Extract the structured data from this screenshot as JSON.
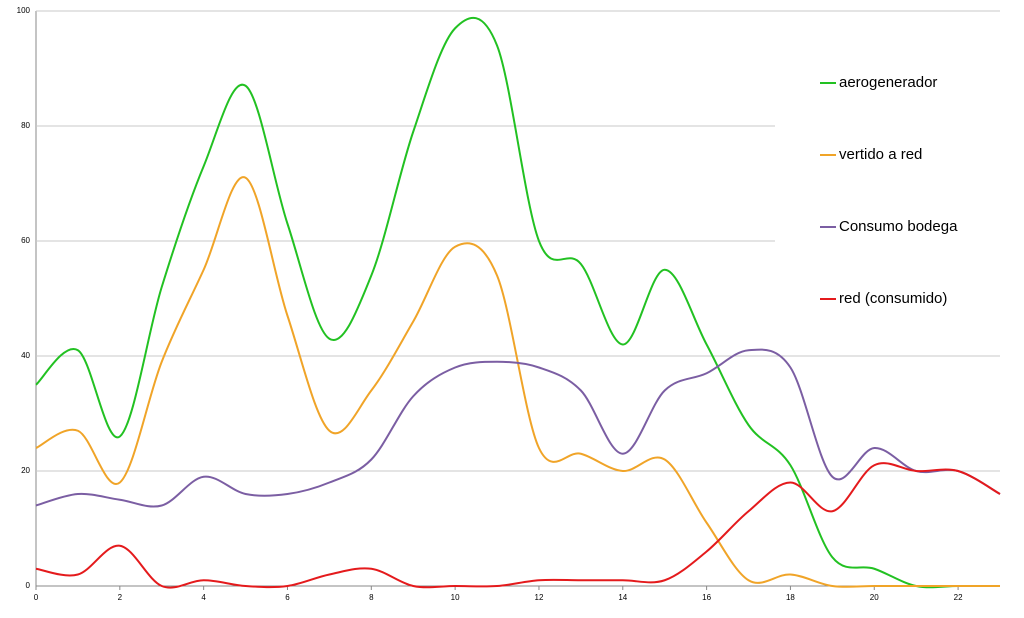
{
  "chart_data": {
    "type": "line",
    "x": [
      0,
      1,
      2,
      3,
      4,
      5,
      6,
      7,
      8,
      9,
      10,
      11,
      12,
      13,
      14,
      15,
      16,
      17,
      18,
      19,
      20,
      21,
      22,
      23
    ],
    "xlim": [
      0,
      23
    ],
    "xticks": [
      0,
      2,
      4,
      6,
      8,
      10,
      12,
      14,
      16,
      18,
      20,
      22
    ],
    "ylim": [
      0,
      100
    ],
    "yticks": [
      0,
      20,
      40,
      60,
      80,
      100
    ],
    "grid": true,
    "legend": "right",
    "series": [
      {
        "name": "aerogenerador",
        "color": "#22c122",
        "values": [
          35,
          41,
          26,
          52,
          73,
          87,
          63,
          43,
          54,
          79,
          97,
          94,
          60,
          56,
          42,
          55,
          42,
          28,
          21,
          5,
          3,
          0,
          0,
          0
        ]
      },
      {
        "name": "vertido a red",
        "color": "#f0a428",
        "values": [
          24,
          27,
          18,
          39,
          55,
          71,
          47,
          27,
          34,
          46,
          59,
          54,
          24,
          23,
          20,
          22,
          11,
          1,
          2,
          0,
          0,
          0,
          0,
          0
        ]
      },
      {
        "name": "Consumo bodega",
        "color": "#7b5ea3",
        "values": [
          14,
          16,
          15,
          14,
          19,
          16,
          16,
          18,
          22,
          33,
          38,
          39,
          38,
          34,
          23,
          34,
          37,
          41,
          38,
          19,
          24,
          20,
          20,
          16
        ]
      },
      {
        "name": "red (consumido)",
        "color": "#e41a1c",
        "values": [
          3,
          2,
          7,
          0,
          1,
          0,
          0,
          2,
          3,
          0,
          0,
          0,
          1,
          1,
          1,
          1,
          6,
          13,
          18,
          13,
          21,
          20,
          20,
          16
        ]
      }
    ]
  }
}
